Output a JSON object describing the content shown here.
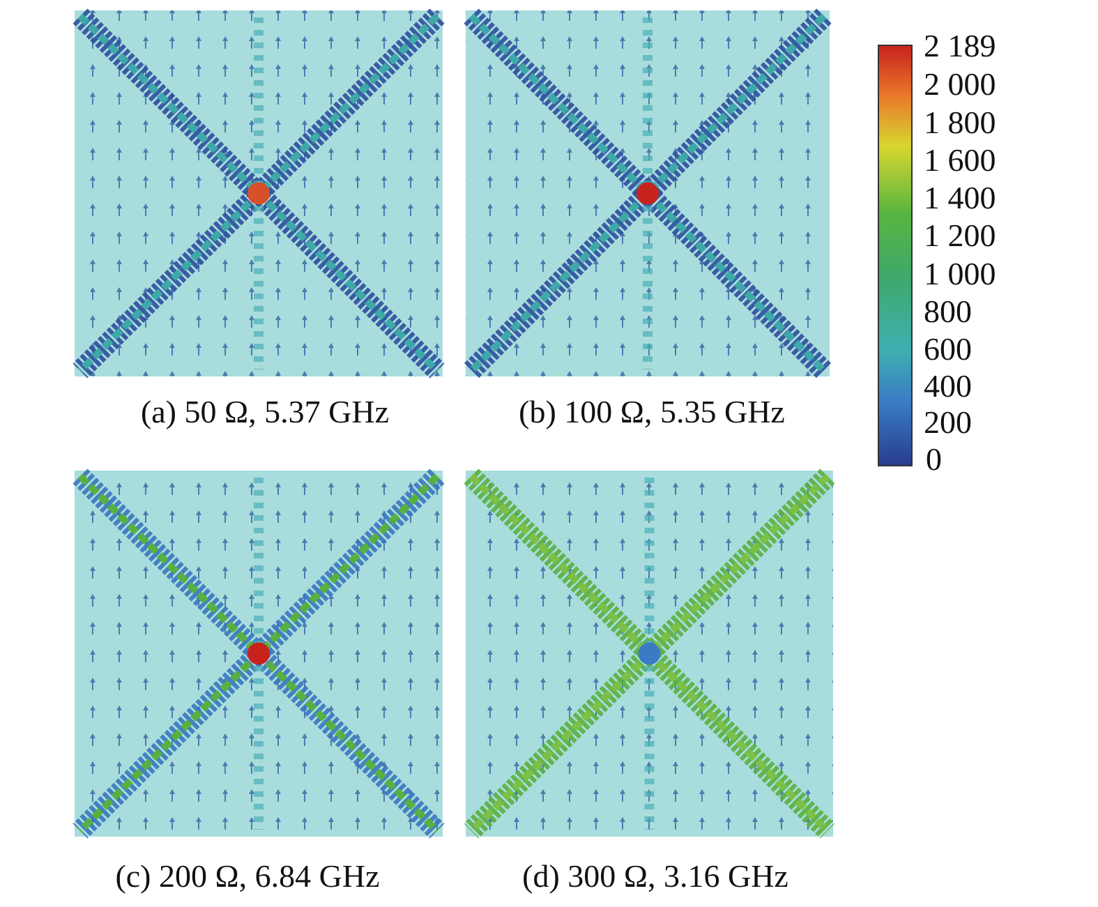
{
  "panels": [
    {
      "caption": "(a) 50 Ω, 5.37 GHz"
    },
    {
      "caption": "(b) 100 Ω, 5.35 GHz"
    },
    {
      "caption": "(c) 200 Ω, 6.84 GHz"
    },
    {
      "caption": "(d) 300 Ω, 3.16 GHz"
    }
  ],
  "colorbar": {
    "labels": [
      "2 189",
      "2 000",
      "1 800",
      "1 600",
      "1 400",
      "1 200",
      "1 000",
      "800",
      "600",
      "400",
      "200",
      "0"
    ]
  }
}
